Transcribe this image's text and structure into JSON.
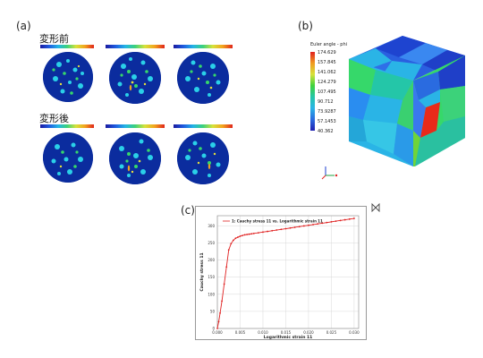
{
  "panels": {
    "a": "(a)",
    "b": "(b)",
    "c": "(c)"
  },
  "pole_figures": {
    "before_label": "変形前",
    "after_label": "変形後"
  },
  "euler_legend": {
    "title": "Euler angle - phi",
    "ticks": [
      "174.629",
      "157.845",
      "141.062",
      "124.279",
      "107.495",
      "90.712",
      "73.9287",
      "57.1453",
      "40.362"
    ]
  },
  "colors": {
    "curve": "#e02020",
    "grid": "#d8d8d8"
  },
  "chart_data": {
    "type": "line",
    "legend": "1: Cauchy stress 11  vs. Logarithmic strain 11",
    "xlabel": "Logarithmic strain 11",
    "ylabel": "Cauchy stress 11",
    "xlim": [
      0.0,
      0.031
    ],
    "ylim": [
      0,
      330
    ],
    "xticks": [
      "0.000",
      "0.005",
      "0.010",
      "0.015",
      "0.020",
      "0.025",
      "0.030"
    ],
    "yticks": [
      "0",
      "50",
      "100",
      "150",
      "200",
      "250",
      "300"
    ],
    "series": [
      {
        "x": [
          0.0,
          0.0003,
          0.0006,
          0.001,
          0.0015,
          0.002,
          0.0025,
          0.003,
          0.0035,
          0.004,
          0.0045,
          0.005,
          0.0055,
          0.006,
          0.0065,
          0.007,
          0.0075,
          0.008,
          0.009,
          0.01,
          0.011,
          0.012,
          0.013,
          0.014,
          0.015,
          0.016,
          0.017,
          0.018,
          0.019,
          0.02,
          0.021,
          0.022,
          0.023,
          0.024,
          0.025,
          0.026,
          0.027,
          0.028,
          0.029,
          0.03
        ],
        "values": [
          0,
          20,
          45,
          80,
          130,
          180,
          230,
          248,
          258,
          264,
          267,
          270,
          272,
          274,
          275,
          276,
          277,
          278,
          280,
          282,
          284,
          286,
          288,
          290,
          292,
          294,
          296,
          298,
          300,
          302,
          304,
          306,
          308,
          310,
          312,
          314,
          316,
          318,
          320,
          322
        ]
      }
    ]
  }
}
